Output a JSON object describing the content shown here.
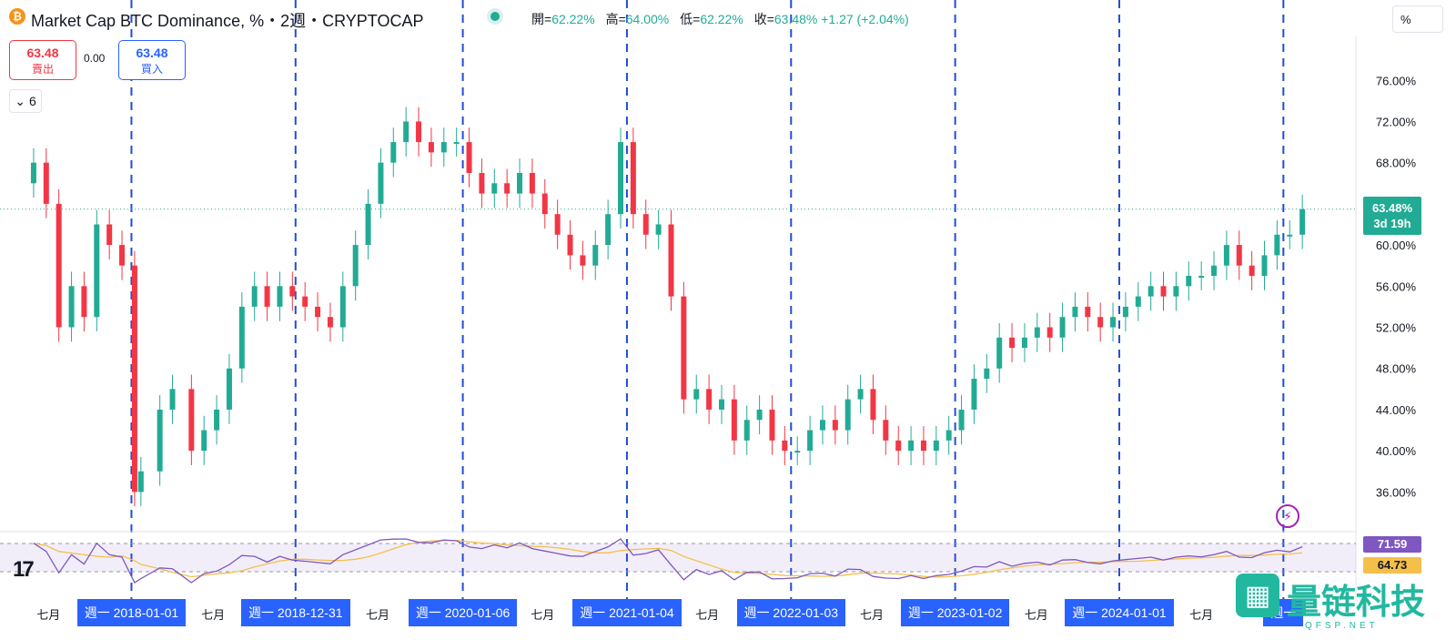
{
  "header": {
    "symbol_title": "Market Cap BTC Dominance, %・2週・CRYPTOCAP",
    "logo_glyph": "₿",
    "ohlc": [
      {
        "label": "開",
        "value": "62.22%"
      },
      {
        "label": "高",
        "value": "64.00%"
      },
      {
        "label": "低",
        "value": "62.22%"
      },
      {
        "label": "收",
        "value": "63.48% +1.27 (+2.04%)"
      }
    ],
    "unit_label": "%"
  },
  "trade": {
    "sell_price": "63.48",
    "sell_label": "賣出",
    "spread": "0.00",
    "buy_price": "63.48",
    "buy_label": "買入"
  },
  "indicators_count": "6",
  "last_price_tag": {
    "value": "63.48%",
    "countdown": "3d 19h"
  },
  "rsi": {
    "value": "71.59",
    "ma": "64.73",
    "line_color": "#7e57c2",
    "ma_color": "#f5c04a",
    "band": [
      30,
      70
    ]
  },
  "colors": {
    "up": "#22ab94",
    "down": "#f23645",
    "accent": "#2962ff"
  },
  "x_axis": {
    "month_label": "七月",
    "date_tags": [
      "週一 2018-01-01",
      "週一 2018-12-31",
      "週一 2020-01-06",
      "週一 2021-01-04",
      "週一 2022-01-03",
      "週一 2023-01-02",
      "週一 2024-01-01",
      "週一"
    ],
    "july_ticks": [
      "2017-07",
      "2018-07",
      "2019-07",
      "2020-07",
      "2021-07",
      "2022-07",
      "2023-07",
      "2024-07"
    ]
  },
  "watermark": {
    "text": "量链科技",
    "sub": "QFSP.NET",
    "icon": "qr-grid-icon"
  },
  "chart_data": {
    "type": "candlestick",
    "interval": "2週",
    "y_unit": "%",
    "y_ticks": [
      36,
      40,
      44,
      48,
      52,
      56,
      60,
      64,
      68,
      72,
      76
    ],
    "y_tick_labels": [
      "36.00%",
      "40.00%",
      "44.00%",
      "48.00%",
      "52.00%",
      "56.00%",
      "60.00%",
      "",
      "68.00%",
      "72.00%",
      "76.00%"
    ],
    "ylim": [
      33.2,
      78.5
    ],
    "grid": false,
    "vertical_markers": [
      "2018-01-01",
      "2018-12-31",
      "2020-01-06",
      "2021-01-04",
      "2022-01-03",
      "2023-01-02",
      "2024-01-01",
      "2024-12-30"
    ],
    "close_series": [
      {
        "date": "2017-05-29",
        "close": 68
      },
      {
        "date": "2017-06-26",
        "close": 64
      },
      {
        "date": "2017-07-24",
        "close": 52
      },
      {
        "date": "2017-08-21",
        "close": 56
      },
      {
        "date": "2017-09-18",
        "close": 53
      },
      {
        "date": "2017-10-16",
        "close": 62
      },
      {
        "date": "2017-11-13",
        "close": 60
      },
      {
        "date": "2017-12-11",
        "close": 58
      },
      {
        "date": "2018-01-08",
        "close": 36
      },
      {
        "date": "2018-01-22",
        "close": 38
      },
      {
        "date": "2018-03-05",
        "close": 44
      },
      {
        "date": "2018-04-02",
        "close": 46
      },
      {
        "date": "2018-05-14",
        "close": 40
      },
      {
        "date": "2018-06-11",
        "close": 42
      },
      {
        "date": "2018-07-09",
        "close": 44
      },
      {
        "date": "2018-08-06",
        "close": 48
      },
      {
        "date": "2018-09-03",
        "close": 54
      },
      {
        "date": "2018-10-01",
        "close": 56
      },
      {
        "date": "2018-10-29",
        "close": 54
      },
      {
        "date": "2018-11-26",
        "close": 56
      },
      {
        "date": "2018-12-24",
        "close": 55
      },
      {
        "date": "2019-01-21",
        "close": 54
      },
      {
        "date": "2019-02-18",
        "close": 53
      },
      {
        "date": "2019-03-18",
        "close": 52
      },
      {
        "date": "2019-04-15",
        "close": 56
      },
      {
        "date": "2019-05-13",
        "close": 60
      },
      {
        "date": "2019-06-10",
        "close": 64
      },
      {
        "date": "2019-07-08",
        "close": 68
      },
      {
        "date": "2019-08-05",
        "close": 70
      },
      {
        "date": "2019-09-02",
        "close": 72
      },
      {
        "date": "2019-09-30",
        "close": 70
      },
      {
        "date": "2019-10-28",
        "close": 69
      },
      {
        "date": "2019-11-25",
        "close": 70
      },
      {
        "date": "2019-12-23",
        "close": 70
      },
      {
        "date": "2020-01-20",
        "close": 67
      },
      {
        "date": "2020-02-17",
        "close": 65
      },
      {
        "date": "2020-03-16",
        "close": 66
      },
      {
        "date": "2020-04-13",
        "close": 65
      },
      {
        "date": "2020-05-11",
        "close": 67
      },
      {
        "date": "2020-06-08",
        "close": 65
      },
      {
        "date": "2020-07-06",
        "close": 63
      },
      {
        "date": "2020-08-03",
        "close": 61
      },
      {
        "date": "2020-08-31",
        "close": 59
      },
      {
        "date": "2020-09-28",
        "close": 58
      },
      {
        "date": "2020-10-26",
        "close": 60
      },
      {
        "date": "2020-11-23",
        "close": 63
      },
      {
        "date": "2020-12-21",
        "close": 70
      },
      {
        "date": "2021-01-18",
        "close": 63
      },
      {
        "date": "2021-02-15",
        "close": 61
      },
      {
        "date": "2021-03-15",
        "close": 62
      },
      {
        "date": "2021-04-12",
        "close": 55
      },
      {
        "date": "2021-05-10",
        "close": 45
      },
      {
        "date": "2021-06-07",
        "close": 46
      },
      {
        "date": "2021-07-05",
        "close": 44
      },
      {
        "date": "2021-08-02",
        "close": 45
      },
      {
        "date": "2021-08-30",
        "close": 41
      },
      {
        "date": "2021-09-27",
        "close": 43
      },
      {
        "date": "2021-10-25",
        "close": 44
      },
      {
        "date": "2021-11-22",
        "close": 41
      },
      {
        "date": "2021-12-20",
        "close": 40
      },
      {
        "date": "2022-01-17",
        "close": 40
      },
      {
        "date": "2022-02-14",
        "close": 42
      },
      {
        "date": "2022-03-14",
        "close": 43
      },
      {
        "date": "2022-04-11",
        "close": 42
      },
      {
        "date": "2022-05-09",
        "close": 45
      },
      {
        "date": "2022-06-06",
        "close": 46
      },
      {
        "date": "2022-07-04",
        "close": 43
      },
      {
        "date": "2022-08-01",
        "close": 41
      },
      {
        "date": "2022-08-29",
        "close": 40
      },
      {
        "date": "2022-09-26",
        "close": 41
      },
      {
        "date": "2022-10-24",
        "close": 40
      },
      {
        "date": "2022-11-21",
        "close": 41
      },
      {
        "date": "2022-12-19",
        "close": 42
      },
      {
        "date": "2023-01-16",
        "close": 44
      },
      {
        "date": "2023-02-13",
        "close": 47
      },
      {
        "date": "2023-03-13",
        "close": 48
      },
      {
        "date": "2023-04-10",
        "close": 51
      },
      {
        "date": "2023-05-08",
        "close": 50
      },
      {
        "date": "2023-06-05",
        "close": 51
      },
      {
        "date": "2023-07-03",
        "close": 52
      },
      {
        "date": "2023-07-31",
        "close": 51
      },
      {
        "date": "2023-08-28",
        "close": 53
      },
      {
        "date": "2023-09-25",
        "close": 54
      },
      {
        "date": "2023-10-23",
        "close": 53
      },
      {
        "date": "2023-11-20",
        "close": 52
      },
      {
        "date": "2023-12-18",
        "close": 53
      },
      {
        "date": "2024-01-15",
        "close": 54
      },
      {
        "date": "2024-02-12",
        "close": 55
      },
      {
        "date": "2024-03-11",
        "close": 56
      },
      {
        "date": "2024-04-08",
        "close": 55
      },
      {
        "date": "2024-05-06",
        "close": 56
      },
      {
        "date": "2024-06-03",
        "close": 57
      },
      {
        "date": "2024-07-01",
        "close": 57
      },
      {
        "date": "2024-07-29",
        "close": 58
      },
      {
        "date": "2024-08-26",
        "close": 60
      },
      {
        "date": "2024-09-23",
        "close": 58
      },
      {
        "date": "2024-10-21",
        "close": 57
      },
      {
        "date": "2024-11-18",
        "close": 59
      },
      {
        "date": "2024-12-16",
        "close": 61
      },
      {
        "date": "2025-01-13",
        "close": 61
      },
      {
        "date": "2025-02-10",
        "close": 63.48
      }
    ],
    "last_value": 63.48
  }
}
